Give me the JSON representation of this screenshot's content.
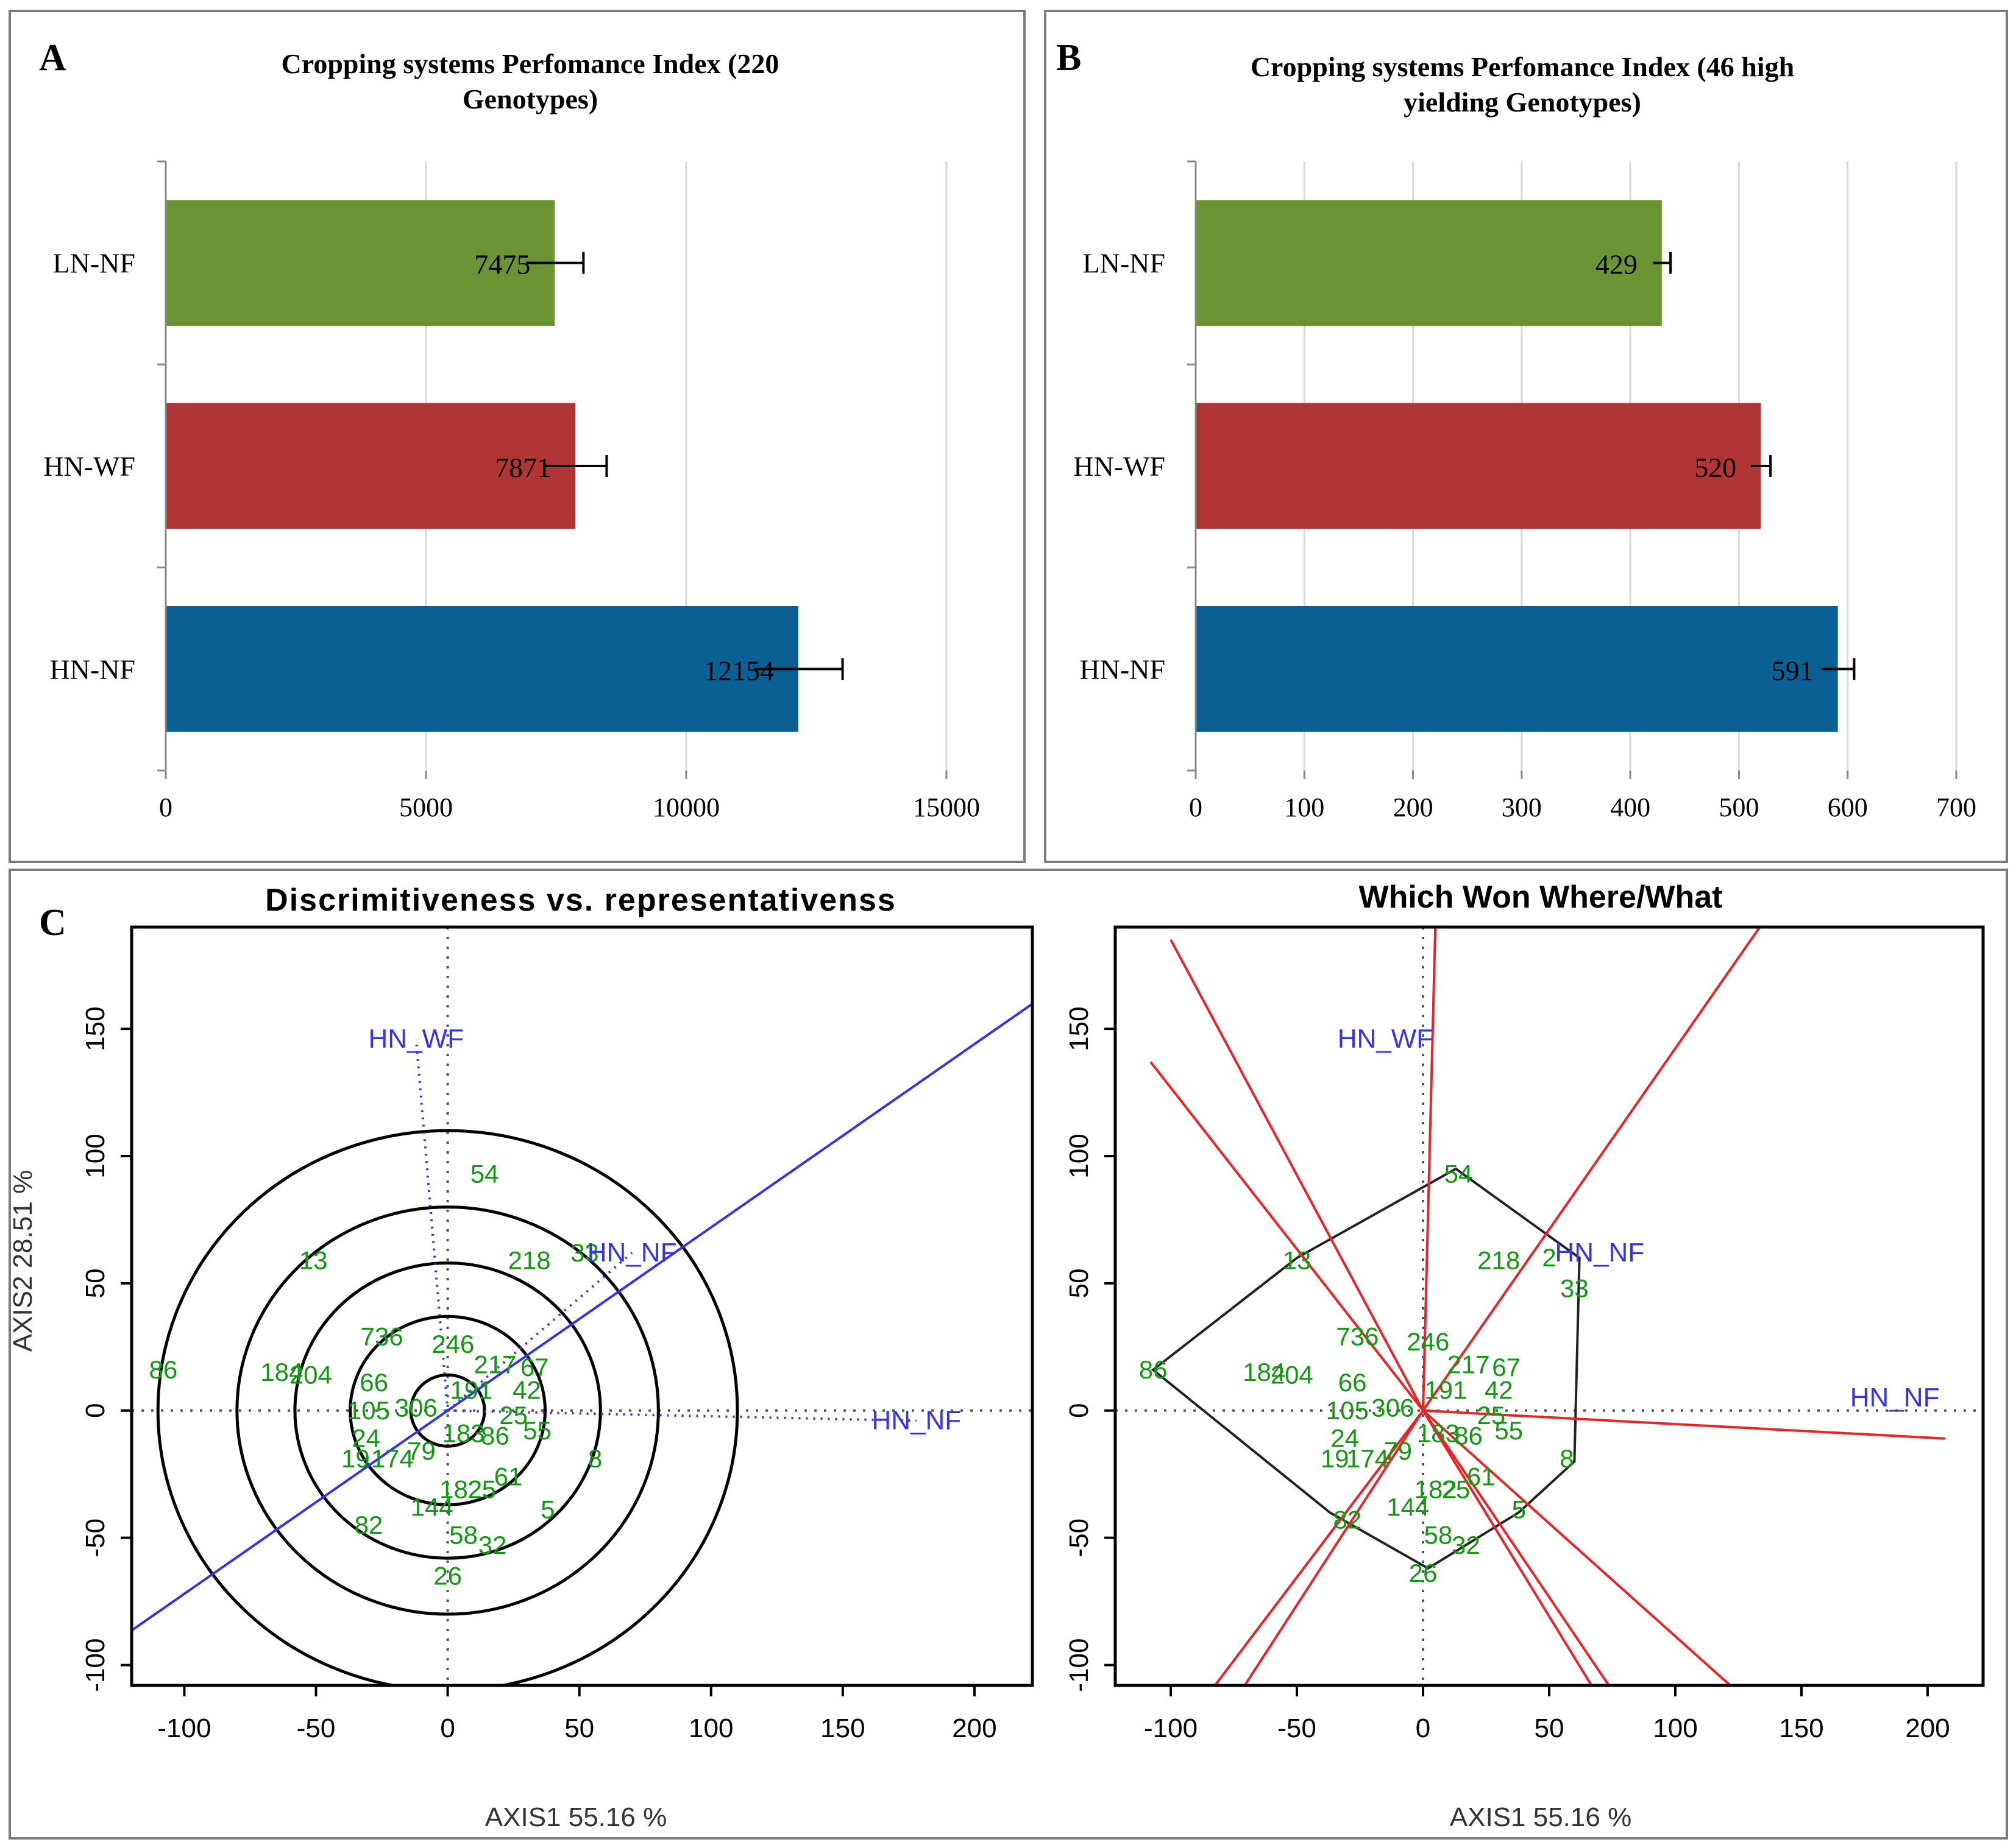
{
  "panels": {
    "A": {
      "letter": "A"
    },
    "B": {
      "letter": "B"
    },
    "C": {
      "letter": "C"
    }
  },
  "colors": {
    "ln_nf": "#6b9535",
    "hn_wf": "#b03534",
    "hn_nf": "#0a6094",
    "blue_line": "#3333ee",
    "red_line": "#ee2222",
    "genotype_text": "#119a11",
    "env_text": "#3333ee"
  },
  "chart_data": [
    {
      "id": "A",
      "type": "bar",
      "orientation": "horizontal",
      "title_lines": [
        "Cropping systems Perfomance Index (220",
        "Genotypes)"
      ],
      "categories": [
        "LN-NF",
        "HN-WF",
        "HN-NF"
      ],
      "values": [
        7475,
        7871,
        12154
      ],
      "value_labels": [
        "7475",
        "7871",
        "12154"
      ],
      "errors": [
        550,
        600,
        850
      ],
      "xlim": [
        0,
        15000
      ],
      "xticks": [
        "0",
        "5000",
        "10000",
        "15000"
      ],
      "grid": true
    },
    {
      "id": "B",
      "type": "bar",
      "orientation": "horizontal",
      "title_lines": [
        "Cropping systems Perfomance Index (46 high",
        "yielding Genotypes)"
      ],
      "categories": [
        "LN-NF",
        "HN-WF",
        "HN-NF"
      ],
      "values": [
        429,
        520,
        591
      ],
      "value_labels": [
        "429",
        "520",
        "591"
      ],
      "errors": [
        8,
        9,
        15
      ],
      "xlim": [
        0,
        700
      ],
      "xticks": [
        "0",
        "100",
        "200",
        "300",
        "400",
        "500",
        "600",
        "700"
      ],
      "grid": true
    },
    {
      "id": "C1",
      "type": "scatter",
      "title": "Discrimitiveness vs. representativenss",
      "xlabel": "AXIS1 55.16 %",
      "ylabel": "AXIS2 28.51 %",
      "xlim": [
        -120,
        222
      ],
      "ylim": [
        -108,
        190
      ],
      "xticks": [
        "-100",
        "-50",
        "0",
        "50",
        "100",
        "150",
        "200"
      ],
      "yticks": [
        "-100",
        "-50",
        "0",
        "50",
        "100",
        "150"
      ],
      "ellipse_center": [
        0,
        0
      ],
      "ellipse_radii": [
        14,
        37,
        58,
        80,
        110
      ],
      "ideal_line_slope": 0.72,
      "environments": [
        {
          "label": "HN_WF",
          "x": -12,
          "y": 146
        },
        {
          "label": "HN_NF",
          "x": 70,
          "y": 62
        },
        {
          "label": "HN_NF",
          "x": 178,
          "y": -4
        }
      ],
      "genotypes": [
        {
          "label": "54",
          "x": 14,
          "y": 93
        },
        {
          "label": "13",
          "x": -51,
          "y": 59
        },
        {
          "label": "218",
          "x": 31,
          "y": 59
        },
        {
          "label": "33",
          "x": 52,
          "y": 62
        },
        {
          "label": "86",
          "x": -108,
          "y": 16
        },
        {
          "label": "184",
          "x": -63,
          "y": 15
        },
        {
          "label": "204",
          "x": -52,
          "y": 14
        },
        {
          "label": "736",
          "x": -25,
          "y": 29
        },
        {
          "label": "246",
          "x": 2,
          "y": 26
        },
        {
          "label": "66",
          "x": -28,
          "y": 11
        },
        {
          "label": "217",
          "x": 18,
          "y": 18
        },
        {
          "label": "67",
          "x": 33,
          "y": 17
        },
        {
          "label": "191",
          "x": 9,
          "y": 8
        },
        {
          "label": "42",
          "x": 30,
          "y": 8
        },
        {
          "label": "105",
          "x": -30,
          "y": 0
        },
        {
          "label": "306",
          "x": -12,
          "y": 1
        },
        {
          "label": "25",
          "x": 25,
          "y": -2
        },
        {
          "label": "24",
          "x": -31,
          "y": -11
        },
        {
          "label": "183",
          "x": 6,
          "y": -9
        },
        {
          "label": "86",
          "x": 18,
          "y": -10
        },
        {
          "label": "55",
          "x": 34,
          "y": -8
        },
        {
          "label": "19",
          "x": -35,
          "y": -19
        },
        {
          "label": "174",
          "x": -21,
          "y": -19
        },
        {
          "label": "79",
          "x": -10,
          "y": -16
        },
        {
          "label": "8",
          "x": 56,
          "y": -19
        },
        {
          "label": "61",
          "x": 23,
          "y": -26
        },
        {
          "label": "182",
          "x": 5,
          "y": -31
        },
        {
          "label": "25",
          "x": 13,
          "y": -31
        },
        {
          "label": "144",
          "x": -6,
          "y": -38
        },
        {
          "label": "5",
          "x": 38,
          "y": -39
        },
        {
          "label": "82",
          "x": -30,
          "y": -45
        },
        {
          "label": "58",
          "x": 6,
          "y": -49
        },
        {
          "label": "32",
          "x": 17,
          "y": -53
        },
        {
          "label": "26",
          "x": 0,
          "y": -65
        }
      ]
    },
    {
      "id": "C2",
      "type": "scatter",
      "title": "Which Won Where/What",
      "xlabel": "AXIS1 55.16 %",
      "ylabel": "",
      "xlim": [
        -122,
        222
      ],
      "ylim": [
        -108,
        190
      ],
      "xticks": [
        "-100",
        "-50",
        "0",
        "50",
        "100",
        "150",
        "200"
      ],
      "yticks": [
        "-100",
        "-50",
        "0",
        "50",
        "100",
        "150"
      ],
      "polygon": [
        [
          13,
          95
        ],
        [
          -50,
          60
        ],
        [
          -107,
          16
        ],
        [
          -37,
          -40
        ],
        [
          2,
          -62
        ],
        [
          38,
          -40
        ],
        [
          60,
          -20
        ],
        [
          62,
          60
        ]
      ],
      "sector_lines": [
        [
          5,
          195
        ],
        [
          -100,
          185
        ],
        [
          -108,
          137
        ],
        [
          137,
          195
        ],
        [
          -84,
          -110
        ],
        [
          -72,
          -110
        ],
        [
          68,
          -110
        ],
        [
          75,
          -110
        ],
        [
          124,
          -110
        ],
        [
          207,
          -11
        ]
      ],
      "environments": [
        {
          "label": "HN_WF",
          "x": -15,
          "y": 146
        },
        {
          "label": "HN_NF",
          "x": 70,
          "y": 62
        },
        {
          "label": "HN_NF",
          "x": 187,
          "y": 5
        }
      ],
      "genotypes": [
        {
          "label": "54",
          "x": 14,
          "y": 93
        },
        {
          "label": "13",
          "x": -50,
          "y": 59
        },
        {
          "label": "218",
          "x": 30,
          "y": 59
        },
        {
          "label": "2",
          "x": 50,
          "y": 60
        },
        {
          "label": "33",
          "x": 60,
          "y": 48
        },
        {
          "label": "86",
          "x": -107,
          "y": 16
        },
        {
          "label": "184",
          "x": -63,
          "y": 15
        },
        {
          "label": "204",
          "x": -52,
          "y": 14
        },
        {
          "label": "736",
          "x": -26,
          "y": 29
        },
        {
          "label": "246",
          "x": 2,
          "y": 27
        },
        {
          "label": "66",
          "x": -28,
          "y": 11
        },
        {
          "label": "217",
          "x": 18,
          "y": 18
        },
        {
          "label": "67",
          "x": 33,
          "y": 17
        },
        {
          "label": "191",
          "x": 9,
          "y": 8
        },
        {
          "label": "42",
          "x": 30,
          "y": 8
        },
        {
          "label": "105",
          "x": -30,
          "y": 0
        },
        {
          "label": "306",
          "x": -12,
          "y": 1
        },
        {
          "label": "25",
          "x": 27,
          "y": -2
        },
        {
          "label": "24",
          "x": -31,
          "y": -11
        },
        {
          "label": "183",
          "x": 6,
          "y": -9
        },
        {
          "label": "86",
          "x": 18,
          "y": -10
        },
        {
          "label": "55",
          "x": 34,
          "y": -8
        },
        {
          "label": "19",
          "x": -35,
          "y": -19
        },
        {
          "label": "174",
          "x": -22,
          "y": -19
        },
        {
          "label": "79",
          "x": -10,
          "y": -16
        },
        {
          "label": "8",
          "x": 57,
          "y": -19
        },
        {
          "label": "61",
          "x": 23,
          "y": -26
        },
        {
          "label": "182",
          "x": 5,
          "y": -31
        },
        {
          "label": "25",
          "x": 13,
          "y": -31
        },
        {
          "label": "144",
          "x": -6,
          "y": -38
        },
        {
          "label": "5",
          "x": 38,
          "y": -39
        },
        {
          "label": "82",
          "x": -30,
          "y": -43
        },
        {
          "label": "58",
          "x": 6,
          "y": -49
        },
        {
          "label": "32",
          "x": 17,
          "y": -53
        },
        {
          "label": "26",
          "x": 0,
          "y": -64
        }
      ]
    }
  ]
}
